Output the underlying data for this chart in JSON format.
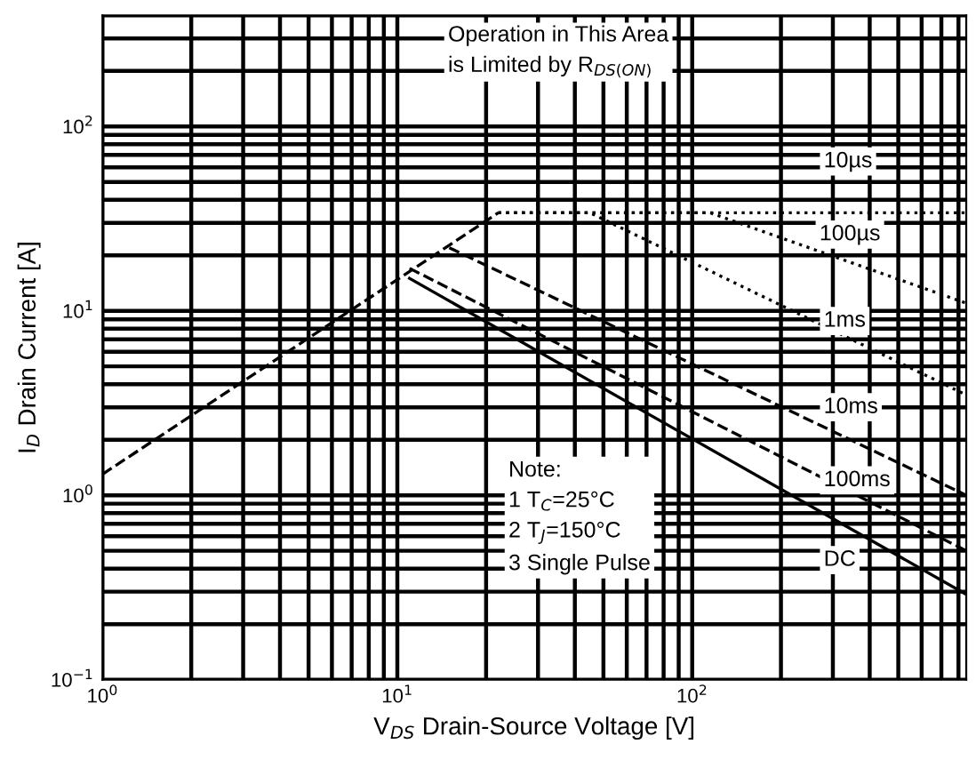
{
  "chart_data": {
    "type": "line",
    "xlabel": "V$_{DS}$ Drain-Source Voltage [V]",
    "ylabel": "I$_{D}$ Drain Current [A]",
    "log": "xy",
    "grid": true,
    "xlim": [
      1,
      850
    ],
    "ylim": [
      0.1,
      400
    ],
    "xticks": [
      {
        "value": 1,
        "label": "10$^{0}$"
      },
      {
        "value": 10,
        "label": "10$^{1}$"
      },
      {
        "value": 100,
        "label": "10$^{2}$"
      }
    ],
    "yticks": [
      {
        "value": 0.1,
        "label": "10$^{−1}$"
      },
      {
        "value": 1,
        "label": "10$^{0}$"
      },
      {
        "value": 10,
        "label": "10$^{1}$"
      },
      {
        "value": 100,
        "label": "10$^{2}$"
      }
    ],
    "series": [
      {
        "color": "#000000",
        "line_style": "dashed",
        "x": [
          1,
          22
        ],
        "values": [
          1.3,
          34
        ]
      },
      {
        "color": "#000000",
        "line_style": "dotted",
        "x": [
          22,
          850
        ],
        "values": [
          34,
          34
        ]
      },
      {
        "color": "#000000",
        "line_style": "dotted",
        "x": [
          22,
          115,
          850
        ],
        "values": [
          34,
          34,
          11
        ]
      },
      {
        "color": "#000000",
        "line_style": "dotted",
        "x": [
          22,
          45,
          850
        ],
        "values": [
          34,
          34,
          3.5
        ]
      },
      {
        "color": "#000000",
        "line_style": "dashed",
        "x": [
          15,
          850
        ],
        "values": [
          22,
          1.0
        ]
      },
      {
        "color": "#000000",
        "line_style": "dashed",
        "x": [
          11,
          850
        ],
        "values": [
          17,
          0.5
        ]
      },
      {
        "color": "#000000",
        "line_style": "solid",
        "x": [
          11,
          850
        ],
        "values": [
          15,
          0.29
        ]
      }
    ],
    "annotations": [
      "Operation in This Area\nis Limited by R$_{DS(ON)}$",
      "10µs",
      "100µs",
      "1ms",
      "10ms",
      "100ms",
      "DC",
      "Note:\n1 T$_{C}$=25°C\n2 T$_{J}$=150°C\n3 Single Pulse"
    ]
  }
}
